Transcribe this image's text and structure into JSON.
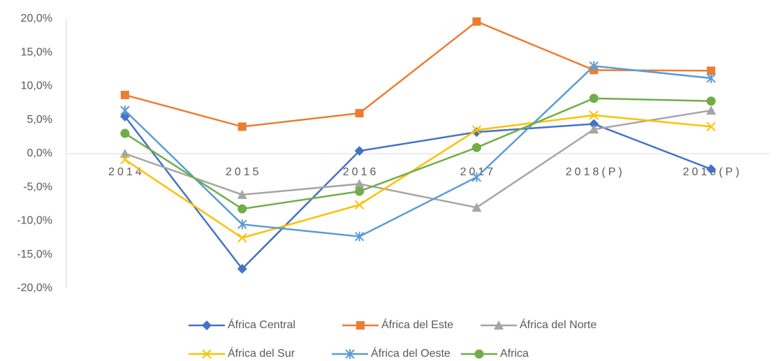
{
  "chart_data": {
    "type": "line",
    "categories": [
      "2014",
      "2015",
      "2016",
      "2017",
      "2018(P)",
      "2019(P)"
    ],
    "ylim": [
      -20,
      20
    ],
    "yticks": [
      {
        "value": -20,
        "label": "-20,0%"
      },
      {
        "value": -15,
        "label": "-15,0%"
      },
      {
        "value": -10,
        "label": "-10,0%"
      },
      {
        "value": -5,
        "label": "-5,0%"
      },
      {
        "value": 0,
        "label": "0,0%"
      },
      {
        "value": 5,
        "label": "5,0%"
      },
      {
        "value": 10,
        "label": "10,0%"
      },
      {
        "value": 15,
        "label": "15,0%"
      },
      {
        "value": 20,
        "label": "20,0%"
      }
    ],
    "grid": false,
    "legend": "bottom",
    "series": [
      {
        "name": "África Central",
        "color": "#4472c4",
        "marker": "diamond",
        "values": [
          5.5,
          -17.1,
          0.4,
          3.2,
          4.4,
          -2.3
        ]
      },
      {
        "name": "África del Este",
        "color": "#ed7d31",
        "marker": "square",
        "values": [
          8.7,
          4.0,
          6.0,
          19.6,
          12.4,
          12.3
        ]
      },
      {
        "name": "África del Norte",
        "color": "#a5a5a5",
        "marker": "triangle",
        "values": [
          0.0,
          -6.1,
          -4.5,
          -8.0,
          3.6,
          6.4
        ]
      },
      {
        "name": "África del Sur",
        "color": "#ffc000",
        "marker": "x",
        "values": [
          -0.9,
          -12.5,
          -7.6,
          3.5,
          5.7,
          4.0
        ]
      },
      {
        "name": "África del Oeste",
        "color": "#5b9bd5",
        "marker": "star",
        "values": [
          6.4,
          -10.5,
          -12.3,
          -3.5,
          13.0,
          11.2
        ]
      },
      {
        "name": "Africa",
        "color": "#70ad47",
        "marker": "circle",
        "values": [
          3.0,
          -8.2,
          -5.6,
          0.9,
          8.2,
          7.8
        ]
      }
    ]
  }
}
